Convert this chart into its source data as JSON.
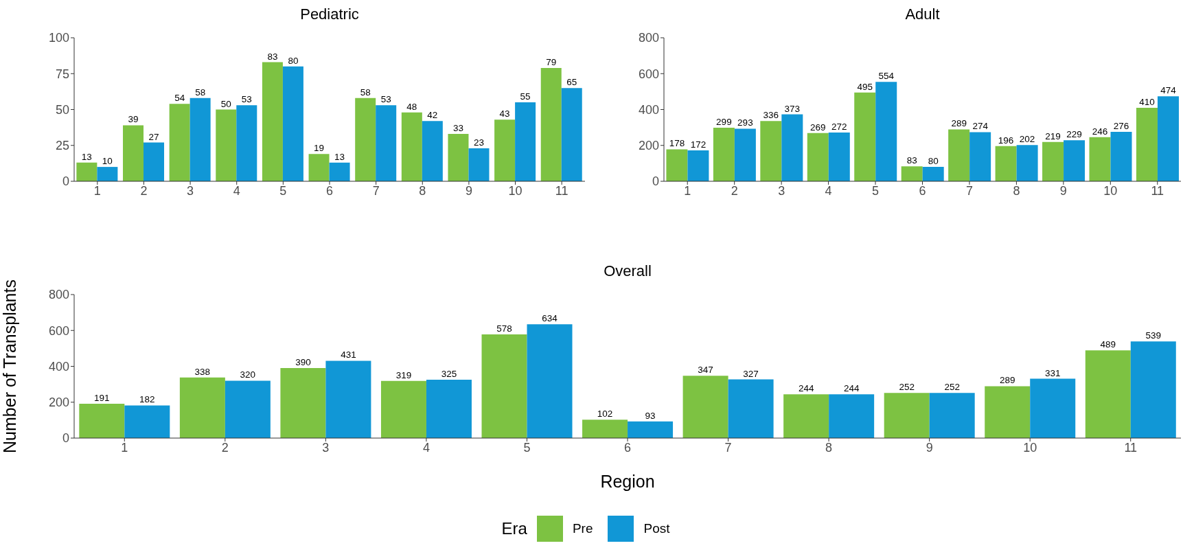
{
  "chart_data": [
    {
      "type": "bar",
      "title": "Pediatric",
      "categories": [
        "1",
        "2",
        "3",
        "4",
        "5",
        "6",
        "7",
        "8",
        "9",
        "10",
        "11"
      ],
      "series": [
        {
          "color": "#7dc242",
          "values": [
            13,
            39,
            54,
            50,
            83,
            19,
            58,
            48,
            33,
            43,
            79
          ]
        },
        {
          "color": "#1197d6",
          "values": [
            10,
            27,
            58,
            53,
            80,
            13,
            53,
            42,
            23,
            55,
            65
          ]
        }
      ],
      "ylim": [
        0,
        100
      ],
      "yticks": [
        0,
        25,
        50,
        75,
        100
      ],
      "data_labels": true,
      "grid": false,
      "legend": false
    },
    {
      "type": "bar",
      "title": "Adult",
      "categories": [
        "1",
        "2",
        "3",
        "4",
        "5",
        "6",
        "7",
        "8",
        "9",
        "10",
        "11"
      ],
      "series": [
        {
          "color": "#7dc242",
          "values": [
            178,
            299,
            336,
            269,
            495,
            83,
            289,
            196,
            219,
            246,
            410
          ]
        },
        {
          "color": "#1197d6",
          "values": [
            172,
            293,
            373,
            272,
            554,
            80,
            274,
            202,
            229,
            276,
            474
          ]
        }
      ],
      "ylim": [
        0,
        800
      ],
      "yticks": [
        0,
        200,
        400,
        600,
        800
      ],
      "data_labels": true,
      "grid": false,
      "legend": false
    },
    {
      "type": "bar",
      "title": "Overall",
      "xlabel": "Region",
      "ylabel": "Number of Transplants",
      "legend_title": "Era",
      "categories": [
        "1",
        "2",
        "3",
        "4",
        "5",
        "6",
        "7",
        "8",
        "9",
        "10",
        "11"
      ],
      "series": [
        {
          "name": "Pre",
          "color": "#7dc242",
          "values": [
            191,
            338,
            390,
            319,
            578,
            102,
            347,
            244,
            252,
            289,
            489
          ]
        },
        {
          "name": "Post",
          "color": "#1197d6",
          "values": [
            182,
            320,
            431,
            325,
            634,
            93,
            327,
            244,
            252,
            331,
            539
          ]
        }
      ],
      "ylim": [
        0,
        800
      ],
      "yticks": [
        0,
        200,
        400,
        600,
        800
      ],
      "data_labels": true,
      "grid": false,
      "legend": "bottom"
    }
  ]
}
